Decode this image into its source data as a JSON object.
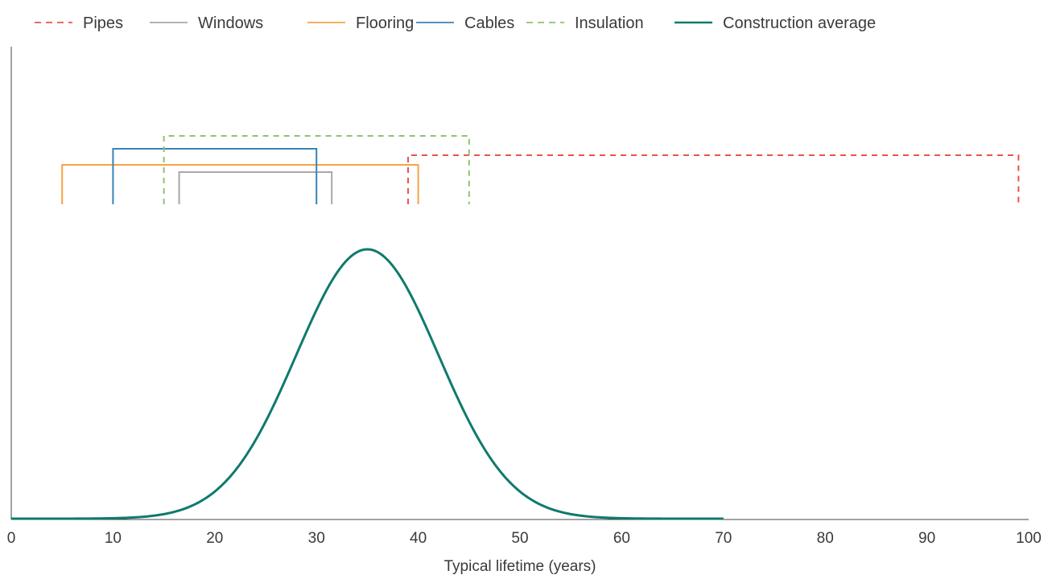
{
  "chart_data": {
    "type": "line",
    "xlabel": "Typical lifetime (years)",
    "ylabel": "",
    "xlim": [
      0,
      100
    ],
    "x_ticks": [
      "0",
      "10",
      "20",
      "30",
      "40",
      "50",
      "60",
      "70",
      "80",
      "90",
      "100"
    ],
    "grid": false,
    "legend_position": "top-left",
    "ranges": [
      {
        "name": "Pipes",
        "color": "#e8544a",
        "dashed": true,
        "start": 39,
        "end": 99,
        "level": 4
      },
      {
        "name": "Windows",
        "color": "#a8a8a8",
        "dashed": false,
        "start": 16.5,
        "end": 31.5,
        "level": 1
      },
      {
        "name": "Flooring",
        "color": "#f5a445",
        "dashed": false,
        "start": 5,
        "end": 40,
        "level": 2
      },
      {
        "name": "Cables",
        "color": "#3b82b8",
        "dashed": false,
        "start": 10,
        "end": 30,
        "level": 3
      },
      {
        "name": "Insulation",
        "color": "#8cc46e",
        "dashed": true,
        "start": 15,
        "end": 45,
        "level": 5
      }
    ],
    "distribution": {
      "name": "Construction average",
      "color": "#0f7a6c",
      "mean": 35,
      "sd": 7,
      "x_start": 0,
      "x_end": 70
    }
  }
}
